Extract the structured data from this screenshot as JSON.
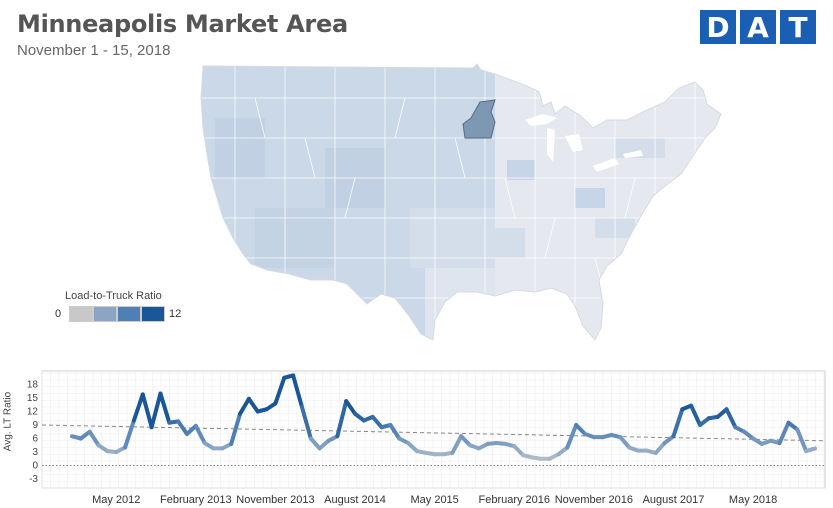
{
  "header": {
    "title": "Minneapolis Market Area",
    "subtitle": "November 1 - 15, 2018",
    "logo_letters": [
      "D",
      "A",
      "T"
    ],
    "logo_color": "#1a5fb4"
  },
  "map": {
    "highlighted_market": "Minneapolis",
    "highlight_color": "#7d98b3",
    "west_color": "#cad8e8",
    "east_color": "#e5e9ef"
  },
  "legend": {
    "title": "Load-to-Truck Ratio",
    "min_label": "0",
    "max_label": "12",
    "colors": [
      "#c8c8c8",
      "#8aa6c4",
      "#4f7fb5",
      "#1a5798"
    ]
  },
  "chart_data": {
    "type": "line",
    "ylabel": "Avg. LT Ratio",
    "ylim": [
      -5,
      21
    ],
    "yticks": [
      -3,
      0,
      3,
      6,
      9,
      12,
      15,
      18
    ],
    "xtick_labels": [
      "May 2012",
      "February 2013",
      "November 2013",
      "August 2014",
      "May 2015",
      "February 2016",
      "November 2016",
      "August 2017",
      "May 2018"
    ],
    "x_start": "2011-12",
    "x_end": "2018-11",
    "series": [
      {
        "values": [
          6.5,
          6.0,
          7.5,
          4.5,
          3.2,
          3.0,
          4.0,
          10.0,
          15.8,
          8.5,
          16.0,
          9.5,
          9.8,
          7.0,
          8.8,
          5.0,
          3.8,
          3.8,
          4.8,
          11.5,
          14.8,
          12.0,
          12.5,
          13.8,
          19.5,
          20.0,
          13.0,
          6.0,
          3.8,
          5.5,
          6.5,
          14.3,
          11.5,
          10.0,
          10.8,
          8.5,
          9.0,
          6.0,
          5.0,
          3.2,
          2.8,
          2.5,
          2.5,
          2.8,
          6.5,
          4.5,
          3.8,
          4.8,
          5.0,
          4.8,
          4.3,
          2.3,
          1.8,
          1.5,
          1.5,
          2.5,
          4.0,
          9.0,
          7.0,
          6.3,
          6.3,
          6.8,
          6.3,
          4.0,
          3.3,
          3.3,
          2.8,
          5.0,
          6.5,
          12.5,
          13.3,
          9.0,
          10.5,
          10.8,
          12.5,
          8.5,
          7.5,
          6.0,
          4.8,
          5.5,
          5.0,
          9.5,
          8.0,
          3.2,
          3.8
        ]
      }
    ],
    "trend": [
      9.0,
      5.5
    ],
    "grid": true
  }
}
